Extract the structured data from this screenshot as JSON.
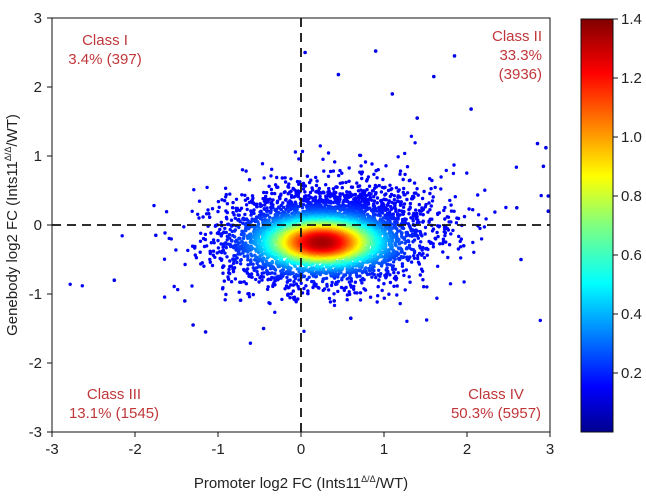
{
  "chart_data": {
    "type": "scatter",
    "x": {
      "min": -3,
      "max": 3,
      "ticks": [
        "-3",
        "-2",
        "-1",
        "0",
        "1",
        "2",
        "3"
      ]
    },
    "y": {
      "min": -3,
      "max": 3,
      "ticks": [
        "-3",
        "-2",
        "-1",
        "0",
        "1",
        "2",
        "3"
      ]
    },
    "xlabel": {
      "prefix": "Promoter log2 FC (Ints11",
      "superscript": "Δ/Δ",
      "suffix": "/WT)"
    },
    "ylabel": {
      "prefix": "Genebody log2 FC (Ints11",
      "superscript": "Δ/Δ",
      "suffix": "/WT)"
    },
    "reference_lines": {
      "x": 0,
      "y": 0,
      "style": "dashed"
    },
    "classes": [
      {
        "name": "Class I",
        "percent": "3.4%",
        "count": "(397)",
        "quadrant": "top-left"
      },
      {
        "name": "Class II",
        "percent": "33.3%",
        "count": "(3936)",
        "quadrant": "top-right"
      },
      {
        "name": "Class III",
        "percent": "13.1%",
        "count": "(1545)",
        "quadrant": "bottom-left"
      },
      {
        "name": "Class IV",
        "percent": "50.3%",
        "count": "(5957)",
        "quadrant": "bottom-right"
      }
    ],
    "density": {
      "peak": {
        "x": 0.25,
        "y": -0.25
      },
      "core_spread": {
        "x": 0.38,
        "y": 0.18
      },
      "colormap": "jet",
      "colorbar": {
        "min": 0,
        "max": 1.4,
        "ticks": [
          "0.2",
          "0.4",
          "0.6",
          "0.8",
          "1.0",
          "1.2",
          "1.4"
        ]
      }
    },
    "outliers": [
      [
        -2.25,
        -0.8
      ],
      [
        -1.75,
        -0.15
      ],
      [
        -1.4,
        -1.1
      ],
      [
        -1.3,
        -1.45
      ],
      [
        -1.15,
        -1.55
      ],
      [
        -0.45,
        -1.5
      ],
      [
        0.05,
        2.5
      ],
      [
        0.9,
        2.52
      ],
      [
        1.85,
        2.45
      ],
      [
        0.45,
        2.18
      ],
      [
        1.6,
        2.15
      ],
      [
        2.05,
        1.68
      ],
      [
        1.1,
        1.9
      ],
      [
        2.85,
        1.18
      ],
      [
        2.95,
        1.12
      ],
      [
        2.92,
        0.85
      ],
      [
        2.98,
        0.42
      ],
      [
        2.98,
        0.2
      ],
      [
        2.6,
        0.25
      ],
      [
        2.65,
        -0.5
      ],
      [
        1.4,
        1.55
      ],
      [
        0.6,
        -1.35
      ],
      [
        0.4,
        -1.1
      ]
    ],
    "grid": false,
    "legend": "colorbar-right"
  }
}
